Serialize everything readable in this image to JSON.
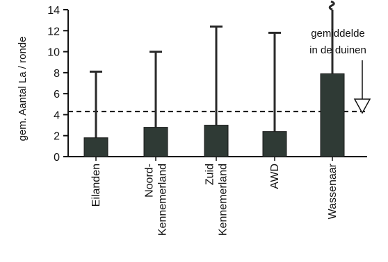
{
  "chart_data": {
    "type": "bar",
    "ylabel": "gem. Aantal La / ronde",
    "ylim": [
      0,
      14
    ],
    "yticks": [
      0,
      2,
      4,
      6,
      8,
      10,
      12,
      14
    ],
    "categories": [
      "Eilanden",
      "Noord-\nKennemerland",
      "Zuid\nKennemerland",
      "AWD",
      "Wassenaar"
    ],
    "values": [
      1.8,
      2.8,
      3.0,
      2.4,
      7.9
    ],
    "error_upper": [
      8.1,
      10.0,
      12.4,
      11.8,
      null
    ],
    "bar_color": "#2f3a35",
    "reference_line": {
      "value": 4.3,
      "style": "dashed"
    },
    "annotation": [
      "gemiddelde",
      "in de duinen"
    ],
    "grid": false
  }
}
